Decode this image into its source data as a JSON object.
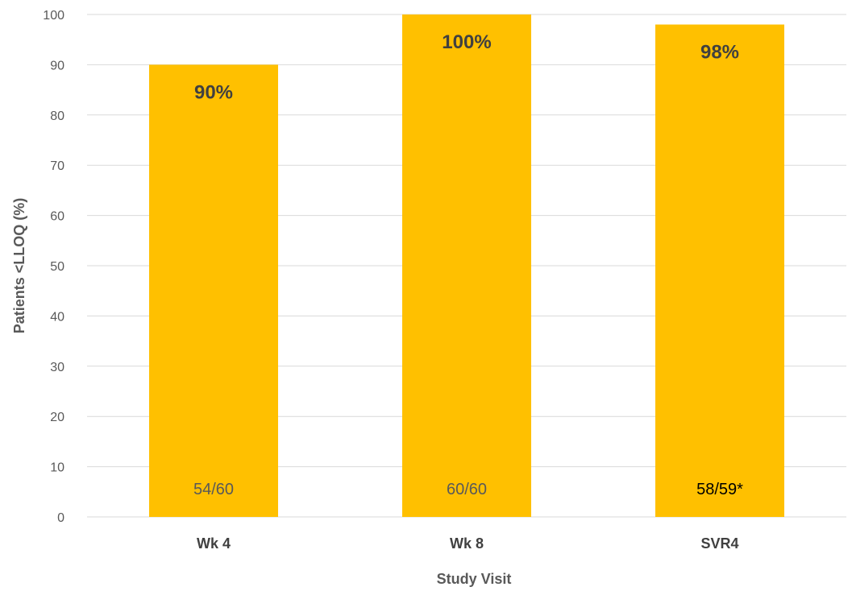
{
  "chart_data": {
    "type": "bar",
    "categories": [
      "Wk 4",
      "Wk 8",
      "SVR4"
    ],
    "values": [
      90,
      100,
      98
    ],
    "value_labels": [
      "90%",
      "100%",
      "98%"
    ],
    "count_labels": [
      "54/60",
      "60/60",
      "58/59*"
    ],
    "xlabel": "Study Visit",
    "ylabel": "Patients <LLOQ (%)",
    "ylim": [
      0,
      100
    ],
    "yticks": [
      0,
      10,
      20,
      30,
      40,
      50,
      60,
      70,
      80,
      90,
      100
    ],
    "grid": true,
    "bar_color": "#FFC000",
    "count_label_colors": [
      "#595959",
      "#595959",
      "#000000"
    ]
  }
}
